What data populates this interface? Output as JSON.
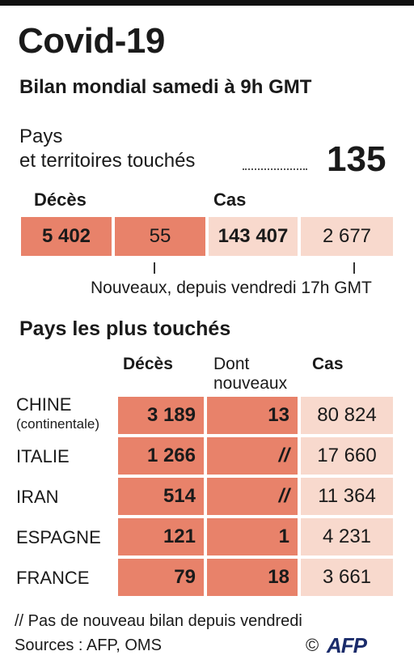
{
  "title": "Covid-19",
  "subtitle": "Bilan mondial samedi à 9h GMT",
  "summary": {
    "pays_label_line1": "Pays",
    "pays_label_line2": "et territoires touchés",
    "pays_value": "135",
    "deces_header": "Décès",
    "cas_header": "Cas",
    "deces_total": "5 402",
    "deces_nouveaux": "55",
    "cas_total": "143 407",
    "cas_nouveaux": "2 677",
    "nouveaux_note": "Nouveaux, depuis vendredi 17h GMT"
  },
  "table": {
    "section_title": "Pays les plus touchés",
    "col_deces": "Décès",
    "col_nouveaux_line1": "Dont",
    "col_nouveaux_line2": "nouveaux",
    "col_cas": "Cas",
    "rows": [
      {
        "country": "CHINE",
        "sub": "(continentale)",
        "deces": "3 189",
        "nouveaux": "13",
        "cas": "80 824"
      },
      {
        "country": "ITALIE",
        "sub": "",
        "deces": "1 266",
        "nouveaux": "//",
        "cas": "17 660"
      },
      {
        "country": "IRAN",
        "sub": "",
        "deces": "514",
        "nouveaux": "//",
        "cas": "11 364"
      },
      {
        "country": "ESPAGNE",
        "sub": "",
        "deces": "121",
        "nouveaux": "1",
        "cas": "4 231"
      },
      {
        "country": "FRANCE",
        "sub": "",
        "deces": "79",
        "nouveaux": "18",
        "cas": "3 661"
      }
    ]
  },
  "footnote": "// Pas de nouveau bilan depuis vendredi",
  "sources": "Sources : AFP, OMS",
  "copyright": "©",
  "logo_text": "AFP",
  "colors": {
    "dark": "#e8826a",
    "light": "#f8d9cd"
  },
  "chart_data": {
    "type": "table",
    "title": "Covid-19",
    "subtitle": "Bilan mondial samedi à 9h GMT",
    "columns": [
      "Décès",
      "Dont nouveaux",
      "Cas"
    ],
    "categories": [
      "CHINE (continentale)",
      "ITALIE",
      "IRAN",
      "ESPAGNE",
      "FRANCE"
    ],
    "series": [
      {
        "name": "Décès",
        "values": [
          3189,
          1266,
          514,
          121,
          79
        ]
      },
      {
        "name": "Dont nouveaux",
        "values": [
          13,
          null,
          null,
          1,
          18
        ]
      },
      {
        "name": "Cas",
        "values": [
          80824,
          17660,
          11364,
          4231,
          3661
        ]
      }
    ]
  }
}
